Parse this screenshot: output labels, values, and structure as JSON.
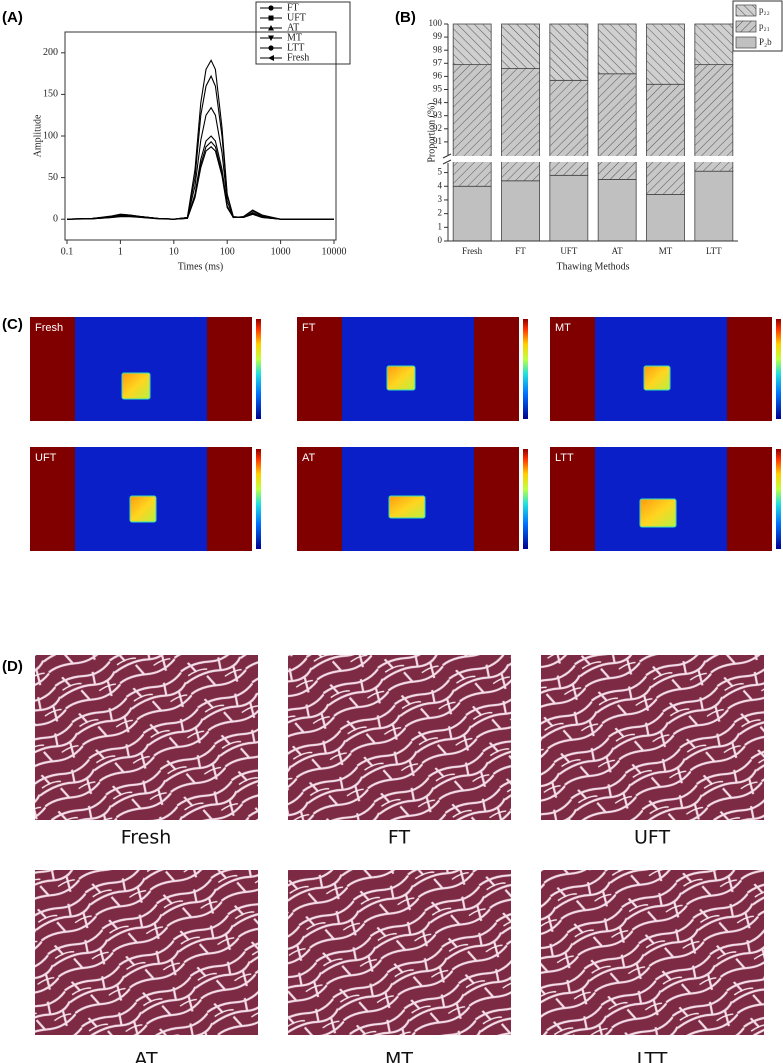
{
  "panel_labels": [
    "(A)",
    "(B)",
    "(C)",
    "(D)"
  ],
  "chart_data": [
    {
      "type": "line",
      "xlabel": "Times (ms)",
      "ylabel": "Amplitude",
      "xscale": "log",
      "x": [
        0.1,
        0.3,
        0.7,
        1,
        1.5,
        2.5,
        5,
        10,
        18,
        25,
        32,
        40,
        50,
        60,
        80,
        100,
        130,
        200,
        300,
        450,
        1000,
        10000
      ],
      "xlim": [
        0.1,
        10000
      ],
      "xticks": [
        0.1,
        1,
        10,
        100,
        1000,
        10000
      ],
      "ylim": [
        -25,
        225
      ],
      "yticks": [
        0,
        50,
        100,
        150,
        200
      ],
      "legend": "top-right",
      "series": [
        {
          "name": "FT",
          "color": "#000000",
          "values": [
            0,
            0.5,
            2,
            3,
            3,
            2,
            0.5,
            0,
            2,
            60,
            140,
            180,
            191,
            180,
            110,
            30,
            3,
            2,
            8,
            3,
            0,
            0
          ]
        },
        {
          "name": "UFT",
          "color": "#000000",
          "values": [
            0,
            0.5,
            2,
            4,
            4,
            3,
            1,
            0,
            2,
            50,
            125,
            160,
            172,
            160,
            100,
            28,
            3,
            2,
            6,
            2,
            0,
            0
          ]
        },
        {
          "name": "AT",
          "color": "#000000",
          "values": [
            0,
            1,
            3,
            5,
            5,
            3,
            1,
            0,
            2,
            40,
            95,
            125,
            134,
            125,
            80,
            22,
            2,
            3,
            10,
            4,
            0,
            0
          ]
        },
        {
          "name": "MT",
          "color": "#000000",
          "values": [
            0,
            1,
            3,
            4,
            4,
            3,
            1,
            0,
            1,
            30,
            72,
            94,
            100,
            94,
            60,
            16,
            2,
            3,
            11,
            5,
            0,
            0
          ]
        },
        {
          "name": "LTT",
          "color": "#000000",
          "values": [
            0,
            1,
            4,
            6,
            5,
            3,
            1,
            0,
            1,
            28,
            66,
            87,
            93,
            87,
            55,
            15,
            2,
            2,
            7,
            3,
            0,
            0
          ]
        },
        {
          "name": "Fresh",
          "color": "#000000",
          "values": [
            0,
            1,
            3,
            5,
            4,
            2,
            1,
            0,
            1,
            26,
            62,
            82,
            87,
            82,
            52,
            14,
            2,
            2,
            6,
            2,
            0,
            0
          ]
        }
      ]
    },
    {
      "type": "stacked-bar",
      "xlabel": "Thawing Methods",
      "ylabel": "Proportion (%)",
      "categories": [
        "Fresh",
        "FT",
        "UFT",
        "AT",
        "MT",
        "LTT"
      ],
      "ylim": [
        0,
        100
      ],
      "ybreak": [
        5.7,
        90
      ],
      "yticks": [
        0,
        1,
        2,
        3,
        4,
        5,
        91,
        92,
        93,
        94,
        95,
        96,
        97,
        98,
        99,
        100
      ],
      "legend": "top-right",
      "series": [
        {
          "name": "P₂b",
          "color": "#c0c0c0",
          "hatch": "none",
          "values": [
            4.0,
            4.4,
            4.8,
            4.5,
            3.4,
            5.1
          ]
        },
        {
          "name": "p₂₁",
          "color": "#c0c0c0",
          "hatch": "/",
          "values": [
            92.9,
            92.2,
            90.9,
            91.7,
            92.0,
            91.8
          ]
        },
        {
          "name": "p₂₂",
          "color": "#c0c0c0",
          "hatch": "\\",
          "values": [
            3.1,
            3.4,
            4.3,
            3.8,
            4.6,
            3.1
          ]
        }
      ]
    }
  ],
  "panel_c": {
    "labels": [
      "Fresh",
      "FT",
      "MT",
      "UFT",
      "AT",
      "LTT"
    ]
  },
  "panel_d": {
    "labels": [
      "Fresh",
      "FT",
      "UFT",
      "AT",
      "MT",
      "LTT"
    ]
  }
}
